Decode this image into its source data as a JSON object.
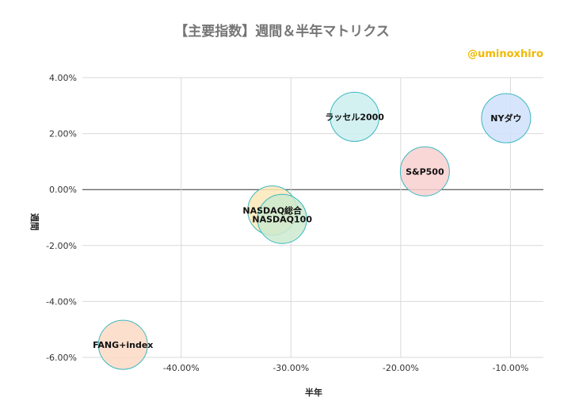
{
  "chart_data": {
    "type": "scatter",
    "title": "【主要指数】週間＆半年マトリクス",
    "subtitle": "@uminoxhiro",
    "xlabel": "半年",
    "ylabel": "週間",
    "xlim": [
      -0.49,
      -0.07
    ],
    "ylim": [
      -0.06,
      0.04
    ],
    "x_ticks": [
      -0.4,
      -0.3,
      -0.2,
      -0.1
    ],
    "x_tick_labels": [
      "-40.00%",
      "-30.00%",
      "-20.00%",
      "-10.00%"
    ],
    "y_ticks": [
      0.04,
      0.02,
      0.0,
      -0.02,
      -0.04,
      -0.06
    ],
    "y_tick_labels": [
      "4.00%",
      "2.00%",
      "0.00%",
      "-2.00%",
      "-4.00%",
      "-6.00%"
    ],
    "grid": true,
    "points": [
      {
        "label": "NYダウ",
        "x": -0.104,
        "y": 0.0255,
        "color": "#cfe0fb"
      },
      {
        "label": "S&P500",
        "x": -0.178,
        "y": 0.0065,
        "color": "#f9d0d0"
      },
      {
        "label": "ラッセル2000",
        "x": -0.242,
        "y": 0.026,
        "color": "#cdeef0"
      },
      {
        "label": "NASDAQ総合",
        "x": -0.317,
        "y": -0.0075,
        "color": "#fde7b8"
      },
      {
        "label": "NASDAQ100",
        "x": -0.308,
        "y": -0.0105,
        "color": "#cdeacf"
      },
      {
        "label": "FANG+index",
        "x": -0.453,
        "y": -0.0555,
        "color": "#fbd9c3"
      }
    ]
  }
}
